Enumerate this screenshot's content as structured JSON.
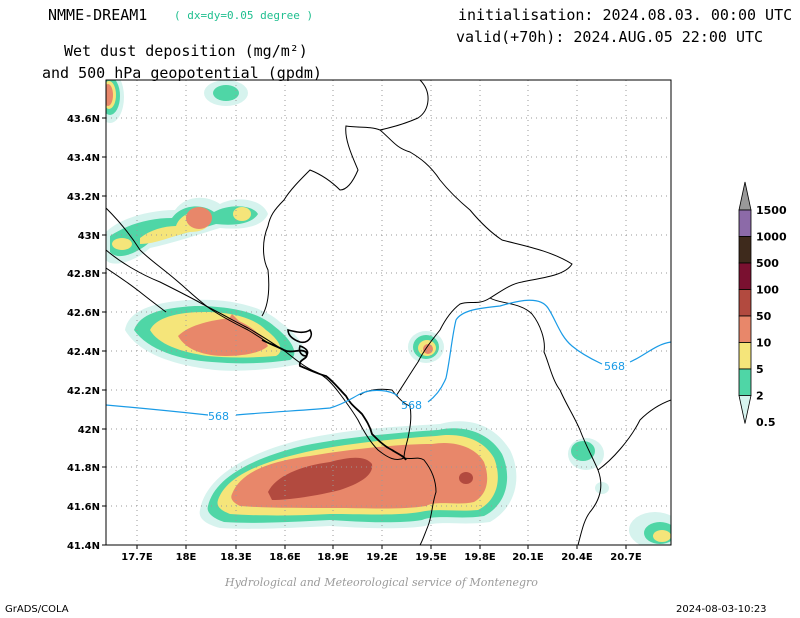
{
  "header": {
    "model": "NMME-DREAM1",
    "resolution": "( dx=dy=0.05 degree )",
    "initialisation": "initialisation: 2024.08.03. 00:00 UTC",
    "valid": "valid(+70h): 2024.AUG.05 22:00 UTC",
    "variable_line1": "Wet dust deposition (mg/m²)",
    "variable_line2": "and 500 hPa geopotential (gpdm)"
  },
  "map": {
    "lat_ticks": [
      "43.6N",
      "43.4N",
      "43.2N",
      "43N",
      "42.8N",
      "42.6N",
      "42.4N",
      "42.2N",
      "42N",
      "41.8N",
      "41.6N",
      "41.4N"
    ],
    "lon_ticks": [
      "17.7E",
      "18E",
      "18.3E",
      "18.6E",
      "18.9E",
      "19.2E",
      "19.5E",
      "19.8E",
      "20.1E",
      "20.4E",
      "20.7E"
    ],
    "contour_labels": [
      "568",
      "568",
      "568"
    ],
    "contour_color": "#1a9be6"
  },
  "colorbar": {
    "levels": [
      "1500",
      "1000",
      "500",
      "100",
      "50",
      "10",
      "5",
      "2",
      "0.5"
    ],
    "colors": [
      "#999999",
      "#8c6aa8",
      "#3e2a1c",
      "#7a1030",
      "#b24a3f",
      "#e8876a",
      "#f5e57a",
      "#4fd6a6",
      "#d6f3ee"
    ]
  },
  "footer": {
    "credit": "Hydrological and Meteorological service of Montenegro",
    "software": "GrADS/COLA",
    "timestamp": "2024-08-03-10:23"
  }
}
